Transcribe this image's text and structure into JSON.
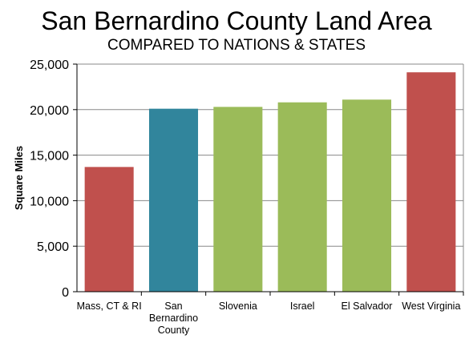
{
  "chart_data": {
    "type": "bar",
    "title": "San Bernardino County Land Area",
    "subtitle": "COMPARED TO NATIONS & STATES",
    "ylabel": "Square Miles",
    "xlabel": "",
    "ylim": [
      0,
      25000
    ],
    "yticks": [
      "0",
      "5,000",
      "10,000",
      "15,000",
      "20,000",
      "25,000"
    ],
    "ytick_values": [
      0,
      5000,
      10000,
      15000,
      20000,
      25000
    ],
    "grid": true,
    "legend": "none",
    "categories": [
      [
        "Mass, CT & RI"
      ],
      [
        "San",
        "Bernardino",
        "County"
      ],
      [
        "Slovenia"
      ],
      [
        "Israel"
      ],
      [
        "El Salvador"
      ],
      [
        "West Virginia"
      ]
    ],
    "values": [
      13700,
      20100,
      20300,
      20800,
      21100,
      24100
    ],
    "colors": [
      "#c0504d",
      "#31859c",
      "#9bbb59",
      "#9bbb59",
      "#9bbb59",
      "#c0504d"
    ]
  }
}
